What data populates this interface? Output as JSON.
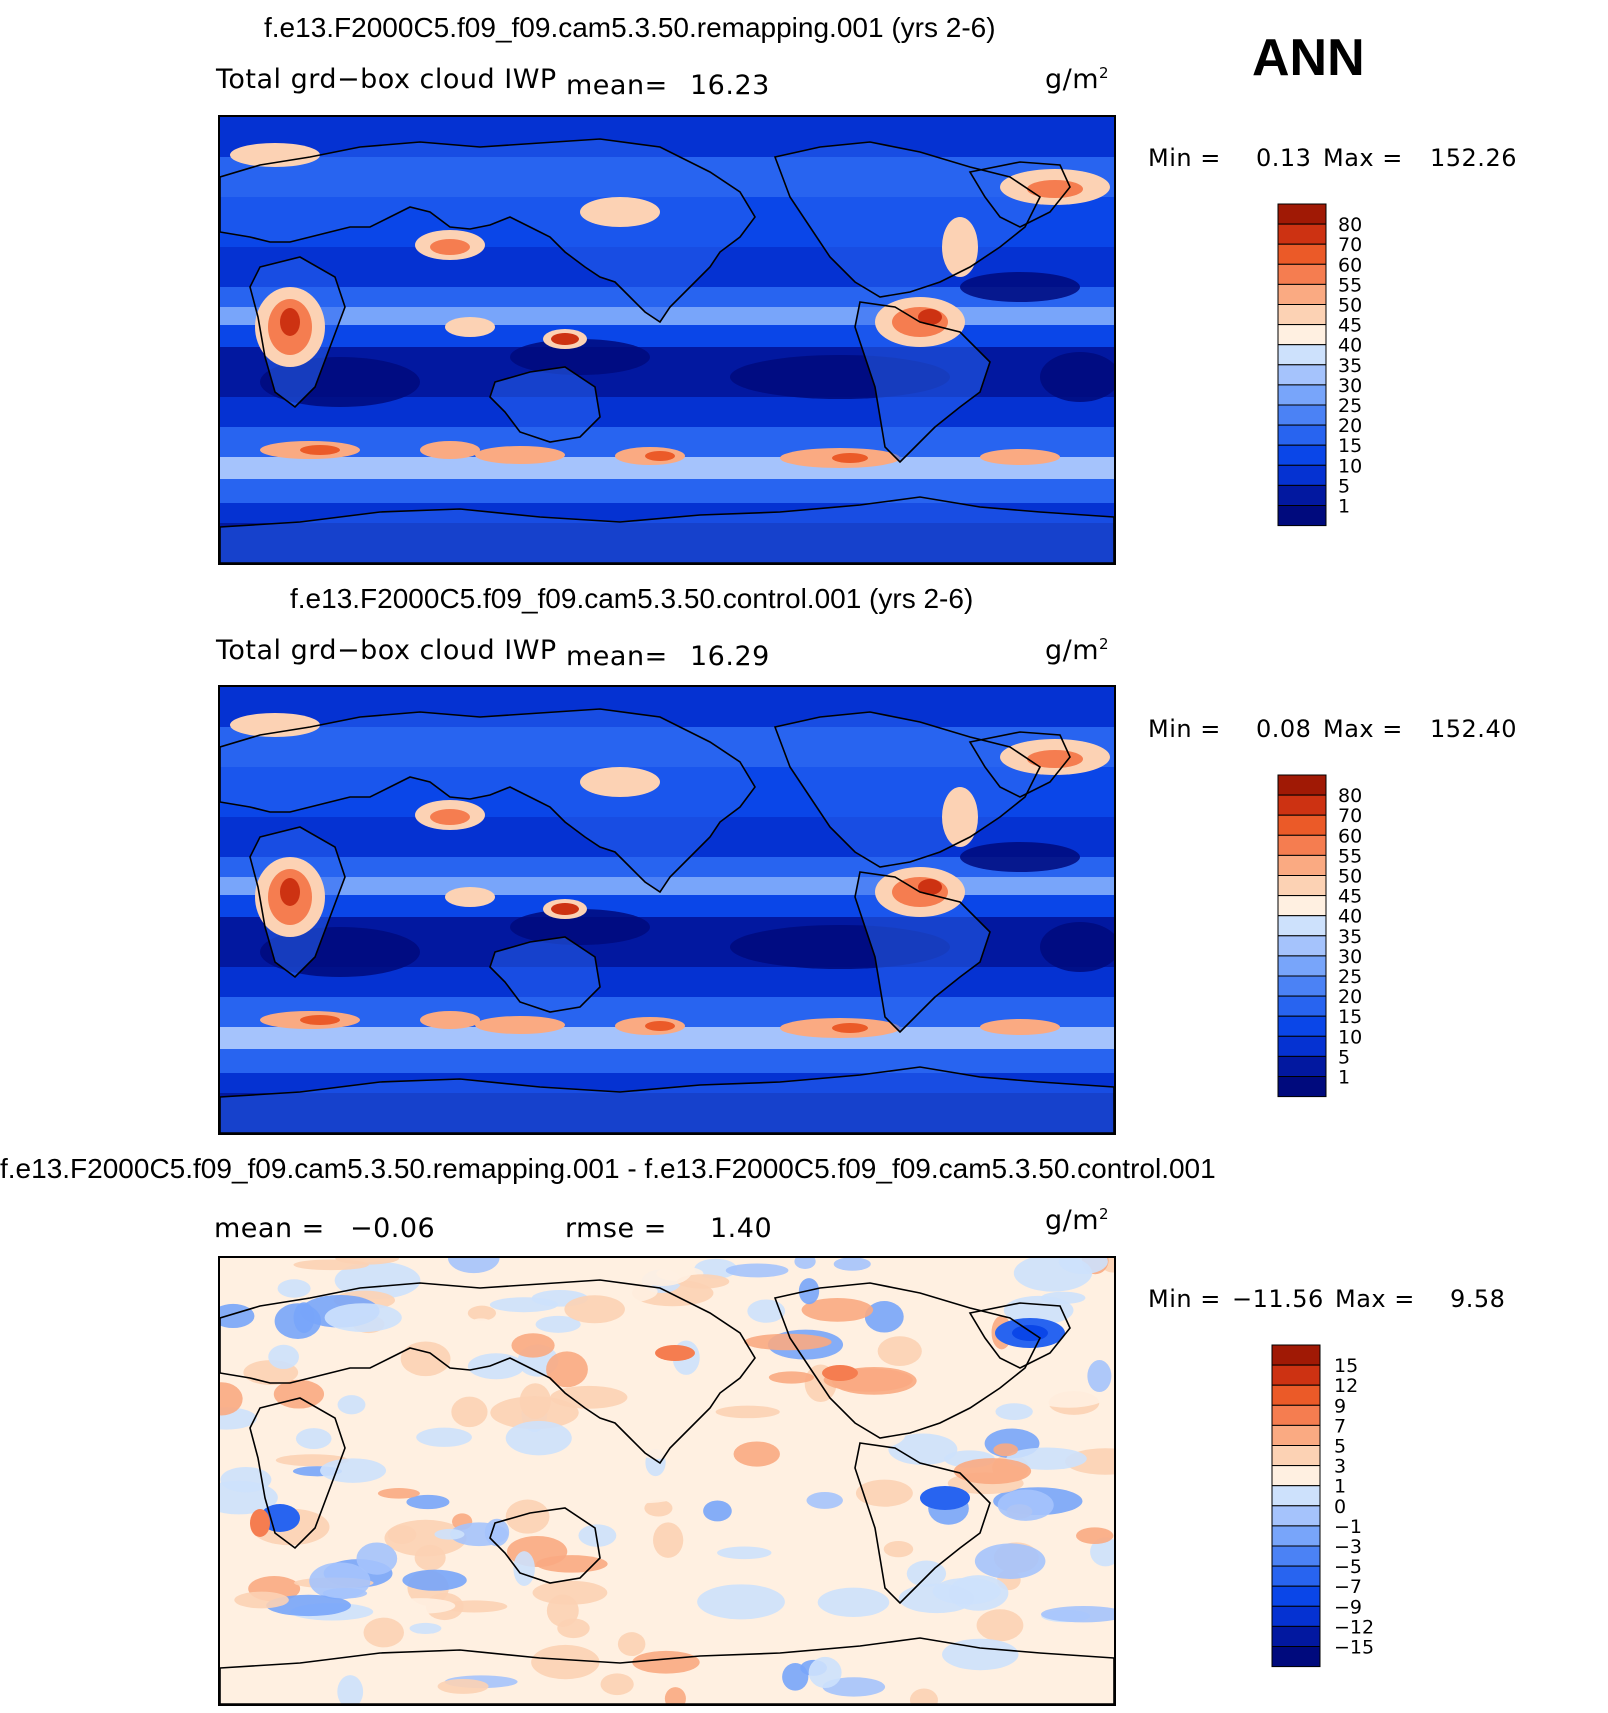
{
  "season": "ANN",
  "units_text": "g/m",
  "units_sup": "2",
  "panels": [
    {
      "title": "f.e13.F2000C5.f09_f09.cam5.3.50.remapping.001 (yrs 2-6)",
      "variable": "Total grd−box cloud IWP",
      "mean_label": "mean=",
      "mean_value": "16.23",
      "min_label": "Min  =",
      "min_value": "0.13",
      "max_label": "Max  =",
      "max_value": "152.26"
    },
    {
      "title": "f.e13.F2000C5.f09_f09.cam5.3.50.control.001 (yrs 2-6)",
      "variable": "Total grd−box cloud IWP",
      "mean_label": "mean=",
      "mean_value": "16.29",
      "min_label": "Min  =",
      "min_value": "0.08",
      "max_label": "Max  =",
      "max_value": "152.40"
    },
    {
      "title": "f.e13.F2000C5.f09_f09.cam5.3.50.remapping.001 - f.e13.F2000C5.f09_f09.cam5.3.50.control.001",
      "mean_label": "mean  =",
      "mean_value": "−0.06",
      "rmse_label": "rmse  =",
      "rmse_value": "1.40",
      "min_label": "Min  =",
      "min_value": "−11.56",
      "max_label": "Max  =",
      "max_value": "9.58"
    }
  ],
  "chart_data": [
    {
      "type": "heatmap",
      "title": "f.e13.F2000C5.f09_f09.cam5.3.50.remapping.001 (yrs 2-6)",
      "variable": "Total grd-box cloud IWP",
      "units": "g/m2",
      "mean": 16.23,
      "min": 0.13,
      "max": 152.26,
      "colorbar_levels": [
        1,
        5,
        10,
        15,
        20,
        25,
        30,
        35,
        40,
        45,
        50,
        55,
        60,
        70,
        80
      ],
      "colorbar_colors": [
        "#000a7d",
        "#0218a0",
        "#0532d2",
        "#0a46e8",
        "#2864f0",
        "#4b82f5",
        "#78a5fa",
        "#a5c3fc",
        "#cde1fc",
        "#fff0e1",
        "#fcd2b4",
        "#faaa82",
        "#f57d50",
        "#eb5a28",
        "#cd3212",
        "#a01905"
      ]
    },
    {
      "type": "heatmap",
      "title": "f.e13.F2000C5.f09_f09.cam5.3.50.control.001 (yrs 2-6)",
      "variable": "Total grd-box cloud IWP",
      "units": "g/m2",
      "mean": 16.29,
      "min": 0.08,
      "max": 152.4,
      "colorbar_levels": [
        1,
        5,
        10,
        15,
        20,
        25,
        30,
        35,
        40,
        45,
        50,
        55,
        60,
        70,
        80
      ],
      "colorbar_colors": [
        "#000a7d",
        "#0218a0",
        "#0532d2",
        "#0a46e8",
        "#2864f0",
        "#4b82f5",
        "#78a5fa",
        "#a5c3fc",
        "#cde1fc",
        "#fff0e1",
        "#fcd2b4",
        "#faaa82",
        "#f57d50",
        "#eb5a28",
        "#cd3212",
        "#a01905"
      ]
    },
    {
      "type": "heatmap",
      "title": "f.e13.F2000C5.f09_f09.cam5.3.50.remapping.001 - f.e13.F2000C5.f09_f09.cam5.3.50.control.001",
      "units": "g/m2",
      "mean": -0.06,
      "rmse": 1.4,
      "min": -11.56,
      "max": 9.58,
      "colorbar_levels": [
        -15,
        -12,
        -9,
        -7,
        -5,
        -3,
        -1,
        0,
        1,
        3,
        5,
        7,
        9,
        12,
        15
      ],
      "colorbar_colors": [
        "#000a7d",
        "#0218a0",
        "#0532d2",
        "#0a46e8",
        "#2864f0",
        "#4b82f5",
        "#78a5fa",
        "#a5c3fc",
        "#cde1fc",
        "#fff0e1",
        "#fcd2b4",
        "#faaa82",
        "#f57d50",
        "#eb5a28",
        "#cd3212",
        "#a01905"
      ]
    }
  ]
}
